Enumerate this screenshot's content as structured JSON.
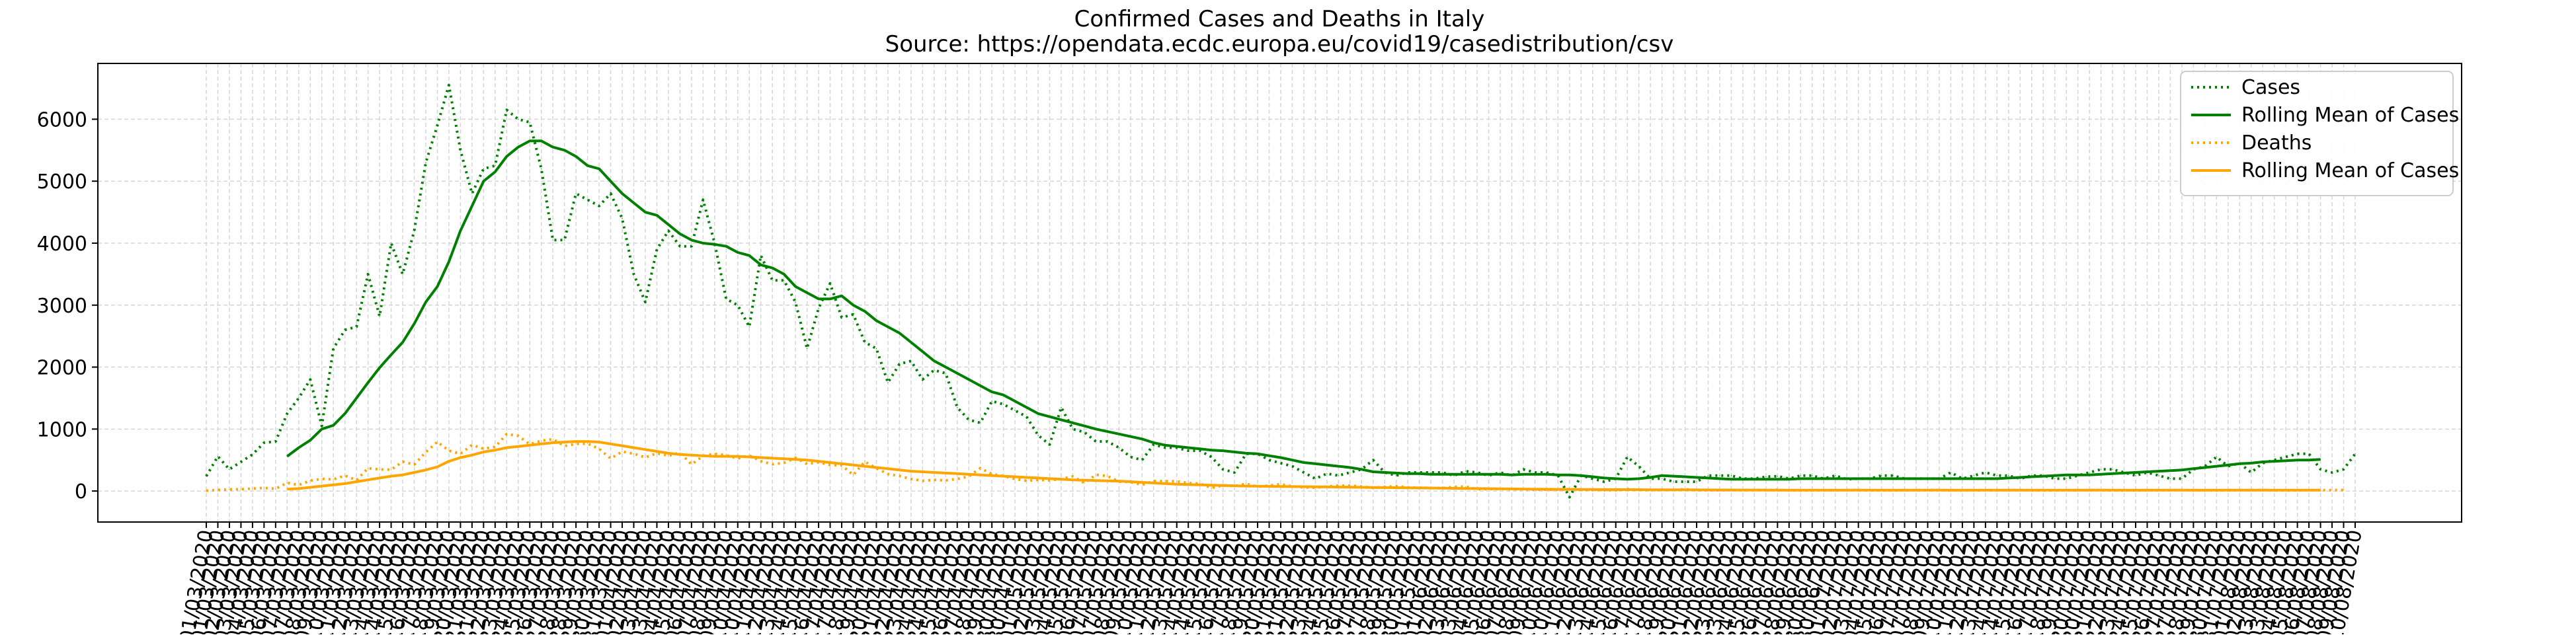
{
  "chart_data": {
    "type": "line",
    "title": "Confirmed Cases and Deaths in Italy",
    "subtitle": "Source: https://opendata.ecdc.europa.eu/covid19/casedistribution/csv",
    "xlabel": "",
    "ylabel": "",
    "ylim": [
      -500,
      6900
    ],
    "yticks": [
      0,
      1000,
      2000,
      3000,
      4000,
      5000,
      6000
    ],
    "grid": true,
    "legend_position": "top-right",
    "x_start": "01/03/2020",
    "x_end": "10/08/2020",
    "series": [
      {
        "name": "Cases",
        "style": "dotted",
        "color": "#008000",
        "values": [
          240,
          560,
          350,
          470,
          590,
          780,
          800,
          1250,
          1500,
          1800,
          1050,
          2300,
          2600,
          2650,
          3500,
          2820,
          4000,
          3500,
          4200,
          5300,
          5900,
          6550,
          5500,
          4800,
          5200,
          5250,
          6150,
          6000,
          5950,
          5200,
          4050,
          4050,
          4800,
          4700,
          4600,
          4800,
          4400,
          3500,
          3050,
          3900,
          4200,
          3950,
          3950,
          4700,
          4000,
          3100,
          3000,
          2650,
          3800,
          3400,
          3400,
          3050,
          2300,
          2950,
          3350,
          2800,
          2850,
          2400,
          2300,
          1750,
          2050,
          2100,
          1800,
          1950,
          1900,
          1350,
          1150,
          1100,
          1450,
          1400,
          1300,
          1200,
          900,
          750,
          1350,
          1000,
          950,
          800,
          800,
          700,
          550,
          500,
          750,
          700,
          700,
          650,
          650,
          550,
          350,
          300,
          600,
          600,
          500,
          450,
          400,
          300,
          200,
          280,
          250,
          300,
          350,
          500,
          300,
          250,
          300,
          300,
          300,
          300,
          250,
          320,
          300,
          250,
          300,
          250,
          350,
          300,
          300,
          250,
          -100,
          250,
          200,
          150,
          200,
          550,
          400,
          200,
          200,
          150,
          150,
          150,
          250,
          250,
          250,
          200,
          200,
          230,
          240,
          200,
          250,
          250,
          200,
          250,
          190,
          200,
          200,
          250,
          250,
          200,
          200,
          200,
          200,
          300,
          200,
          250,
          300,
          250,
          250,
          200,
          250,
          250,
          200,
          200,
          250,
          300,
          350,
          350,
          300,
          250,
          300,
          250,
          200,
          200,
          350,
          400,
          550,
          400,
          450,
          300,
          450,
          500,
          550,
          600,
          600,
          350,
          300,
          350,
          600
        ]
      },
      {
        "name": "Rolling Mean of Cases",
        "style": "solid",
        "color": "#008000",
        "values": [
          null,
          null,
          null,
          null,
          null,
          null,
          null,
          560,
          700,
          820,
          1000,
          1060,
          1250,
          1500,
          1750,
          1990,
          2200,
          2400,
          2700,
          3050,
          3300,
          3700,
          4200,
          4600,
          5000,
          5150,
          5400,
          5550,
          5650,
          5650,
          5550,
          5500,
          5400,
          5250,
          5200,
          5000,
          4800,
          4650,
          4500,
          4450,
          4300,
          4150,
          4050,
          4000,
          3980,
          3950,
          3850,
          3800,
          3650,
          3600,
          3500,
          3300,
          3200,
          3100,
          3100,
          3150,
          3000,
          2900,
          2750,
          2650,
          2550,
          2400,
          2250,
          2100,
          2000,
          1900,
          1800,
          1700,
          1600,
          1550,
          1450,
          1350,
          1250,
          1200,
          1150,
          1100,
          1050,
          1000,
          960,
          920,
          880,
          840,
          780,
          740,
          720,
          700,
          680,
          660,
          650,
          630,
          610,
          600,
          570,
          540,
          500,
          460,
          440,
          420,
          400,
          380,
          350,
          310,
          300,
          290,
          280,
          280,
          270,
          270,
          270,
          270,
          270,
          270,
          270,
          260,
          270,
          270,
          270,
          260,
          260,
          250,
          230,
          210,
          200,
          190,
          200,
          220,
          250,
          240,
          230,
          220,
          210,
          200,
          190,
          190,
          190,
          190,
          190,
          190,
          200,
          200,
          200,
          200,
          200,
          200,
          200,
          200,
          200,
          200,
          200,
          200,
          200,
          200,
          200,
          200,
          200,
          200,
          210,
          220,
          230,
          240,
          250,
          260,
          260,
          260,
          270,
          280,
          290,
          300,
          310,
          320,
          330,
          340,
          360,
          380,
          400,
          420,
          440,
          450,
          470,
          480,
          490,
          500,
          500,
          510
        ]
      },
      {
        "name": "Deaths",
        "style": "dotted",
        "color": "#ffa500",
        "values": [
          5,
          18,
          27,
          28,
          41,
          49,
          36,
          133,
          97,
          168,
          196,
          189,
          250,
          175,
          368,
          349,
          345,
          475,
          427,
          627,
          793,
          651,
          601,
          743,
          683,
          712,
          919,
          889,
          756,
          812,
          837,
          727,
          760,
          766,
          681,
          525,
          636,
          604,
          542,
          610,
          570,
          619,
          431,
          566,
          602,
          578,
          525,
          575,
          482,
          433,
          454,
          534,
          437,
          464,
          420,
          415,
          260,
          474,
          369,
          274,
          243,
          194,
          165,
          179,
          172,
          195,
          236,
          369,
          274,
          243,
          194,
          165,
          179,
          172,
          195,
          236,
          130,
          262,
          242,
          153,
          145,
          99,
          162,
          161,
          156,
          130,
          119,
          50,
          92,
          78,
          117,
          70,
          87,
          111,
          75,
          60,
          55,
          71,
          88,
          85,
          72,
          53,
          65,
          79,
          59,
          53,
          49,
          47,
          67,
          72,
          30,
          30,
          35,
          30,
          30,
          24,
          23,
          20,
          31,
          22,
          17,
          15,
          13,
          30,
          21,
          15,
          18,
          17,
          30,
          15,
          13,
          13,
          14,
          15,
          16,
          17,
          18,
          11,
          10,
          12,
          13,
          14,
          15,
          16,
          11,
          10,
          12,
          13,
          14,
          15,
          16,
          11,
          10,
          12,
          13,
          14,
          15,
          16,
          11,
          10,
          12,
          13,
          14,
          15,
          16,
          11,
          10,
          12,
          13,
          14,
          15,
          16,
          11,
          10,
          12,
          13,
          14,
          15,
          16,
          11,
          10,
          12,
          13,
          14,
          15,
          16
        ]
      },
      {
        "name": "Rolling Mean of Cases",
        "style": "solid",
        "color": "#ffa500",
        "values": [
          null,
          null,
          null,
          null,
          null,
          null,
          null,
          30,
          40,
          60,
          80,
          100,
          120,
          150,
          180,
          210,
          240,
          260,
          300,
          340,
          390,
          480,
          540,
          580,
          630,
          660,
          700,
          720,
          740,
          760,
          780,
          790,
          800,
          800,
          790,
          760,
          730,
          700,
          670,
          640,
          610,
          590,
          580,
          570,
          560,
          560,
          560,
          550,
          540,
          530,
          520,
          510,
          500,
          480,
          460,
          440,
          420,
          400,
          380,
          360,
          340,
          320,
          310,
          300,
          290,
          280,
          270,
          260,
          250,
          240,
          230,
          220,
          210,
          200,
          190,
          180,
          175,
          170,
          165,
          160,
          150,
          140,
          130,
          120,
          110,
          105,
          100,
          95,
          90,
          85,
          80,
          78,
          76,
          74,
          72,
          70,
          68,
          66,
          64,
          62,
          60,
          58,
          56,
          54,
          52,
          50,
          48,
          46,
          44,
          42,
          40,
          38,
          36,
          34,
          32,
          30,
          29,
          28,
          27,
          26,
          25,
          24,
          23,
          22,
          21,
          20,
          20,
          19,
          19,
          18,
          18,
          17,
          17,
          16,
          16,
          15,
          15,
          15,
          15,
          15,
          14,
          14,
          14,
          14,
          14,
          14,
          14,
          14,
          14,
          14,
          14,
          14,
          14,
          14,
          14,
          14,
          14,
          14,
          14,
          14,
          14,
          14,
          14,
          14,
          14,
          14,
          14,
          14,
          14,
          14,
          14,
          14,
          14,
          14,
          14,
          14,
          14,
          14,
          14,
          14,
          14,
          14,
          14,
          14
        ]
      }
    ]
  }
}
